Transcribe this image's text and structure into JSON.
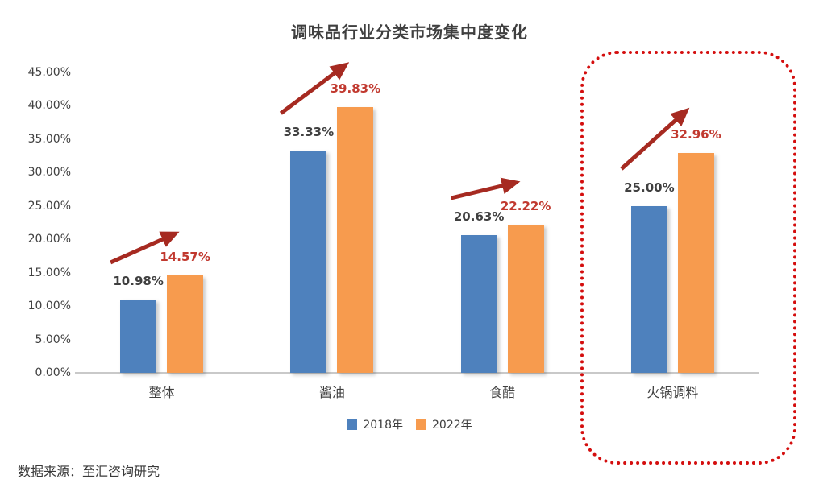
{
  "title": "调味品行业分类市场集中度变化",
  "source": "数据来源：至汇咨询研究",
  "chart_data": {
    "type": "bar",
    "title": "调味品行业分类市场集中度变化",
    "categories": [
      "整体",
      "酱油",
      "食醋",
      "火锅调料"
    ],
    "series": [
      {
        "name": "2018年",
        "color": "#4e81bd",
        "label_color": "#404040",
        "values": [
          10.98,
          33.33,
          20.63,
          25.0
        ],
        "labels": [
          "10.98%",
          "33.33%",
          "20.63%",
          "25.00%"
        ]
      },
      {
        "name": "2022年",
        "color": "#f79b4e",
        "label_color": "#c1392f",
        "values": [
          14.57,
          39.83,
          22.22,
          32.96
        ],
        "labels": [
          "14.57%",
          "39.83%",
          "22.22%",
          "32.96%"
        ]
      }
    ],
    "y_ticks": [
      "0.00%",
      "5.00%",
      "10.00%",
      "15.00%",
      "20.00%",
      "25.00%",
      "30.00%",
      "35.00%",
      "40.00%",
      "45.00%"
    ],
    "ylim": [
      0,
      45
    ],
    "y_tick_step": 5,
    "xlabel": "",
    "ylabel": "",
    "grid": false,
    "legend_position": "bottom",
    "annotations": {
      "trend_arrows": {
        "style": "up-right",
        "color": "#a62a21",
        "on_categories": [
          "整体",
          "酱油",
          "食醋",
          "火锅调料"
        ]
      },
      "highlight_box": {
        "category": "火锅调料",
        "border_color": "#d40e0e",
        "style": "dotted rounded rectangle"
      }
    }
  }
}
